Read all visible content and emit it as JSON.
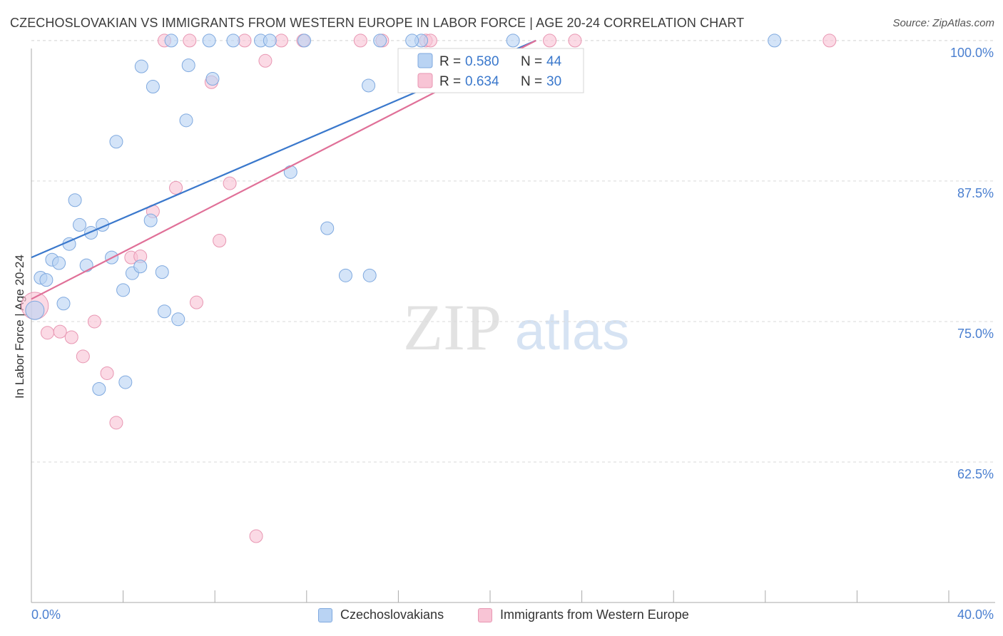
{
  "header": {
    "title": "CZECHOSLOVAKIAN VS IMMIGRANTS FROM WESTERN EUROPE IN LABOR FORCE | AGE 20-24 CORRELATION CHART",
    "source": "Source: ZipAtlas.com"
  },
  "watermark": {
    "zip": "ZIP",
    "atlas": "atlas"
  },
  "colors": {
    "blue_fill": "#b9d3f3",
    "blue_stroke": "#7fa9df",
    "blue_line": "#3a78cc",
    "pink_fill": "#f8c4d5",
    "pink_stroke": "#e896b2",
    "pink_line": "#e07098",
    "axis_label": "#4a7fd0",
    "grid": "#d9d9d9"
  },
  "legend_stats": [
    {
      "r_label": "R = ",
      "r_value": "0.580",
      "n_label": "N = ",
      "n_value": "44"
    },
    {
      "r_label": "R = ",
      "r_value": "0.634",
      "n_label": "N = ",
      "n_value": "30"
    }
  ],
  "chart_data": {
    "type": "scatter",
    "title": "CZECHOSLOVAKIAN VS IMMIGRANTS FROM WESTERN EUROPE IN LABOR FORCE | AGE 20-24 CORRELATION CHART",
    "xlabel": "",
    "ylabel": "In Labor Force | Age 20-24",
    "xlim": [
      0,
      40
    ],
    "ylim": [
      50,
      101.2
    ],
    "x_tick_labels": [
      "0.0%",
      "40.0%"
    ],
    "y_ticks": [
      62.5,
      75.0,
      87.5,
      100.0
    ],
    "y_tick_labels": [
      "62.5%",
      "75.0%",
      "87.5%",
      "100.0%"
    ],
    "grid": true,
    "legend_position": "bottom",
    "series": [
      {
        "name": "Czechoslovakians",
        "color": "#b9d3f3",
        "trend": {
          "x": [
            0,
            22
          ],
          "y": [
            80.7,
            100.0
          ]
        },
        "points": [
          {
            "x": 0.15,
            "y": 76.0,
            "s": 1
          },
          {
            "x": 0.4,
            "y": 78.9,
            "s": 0
          },
          {
            "x": 0.65,
            "y": 78.7,
            "s": 0
          },
          {
            "x": 0.9,
            "y": 80.5,
            "s": 0
          },
          {
            "x": 1.2,
            "y": 80.2,
            "s": 0
          },
          {
            "x": 1.4,
            "y": 76.6,
            "s": 0
          },
          {
            "x": 1.65,
            "y": 81.9,
            "s": 0
          },
          {
            "x": 1.9,
            "y": 85.8,
            "s": 0
          },
          {
            "x": 2.1,
            "y": 83.6,
            "s": 0
          },
          {
            "x": 2.4,
            "y": 80.0,
            "s": 0
          },
          {
            "x": 2.6,
            "y": 82.9,
            "s": 0
          },
          {
            "x": 2.95,
            "y": 69.0,
            "s": 0
          },
          {
            "x": 3.1,
            "y": 83.6,
            "s": 0
          },
          {
            "x": 3.5,
            "y": 80.7,
            "s": 0
          },
          {
            "x": 3.7,
            "y": 91.0,
            "s": 0
          },
          {
            "x": 4.0,
            "y": 77.8,
            "s": 0
          },
          {
            "x": 4.1,
            "y": 69.6,
            "s": 0
          },
          {
            "x": 4.4,
            "y": 79.3,
            "s": 0
          },
          {
            "x": 4.75,
            "y": 79.9,
            "s": 0
          },
          {
            "x": 4.8,
            "y": 97.7,
            "s": 0
          },
          {
            "x": 5.2,
            "y": 84.0,
            "s": 0
          },
          {
            "x": 5.3,
            "y": 95.9,
            "s": 0
          },
          {
            "x": 5.7,
            "y": 79.4,
            "s": 0
          },
          {
            "x": 5.8,
            "y": 75.9,
            "s": 0
          },
          {
            "x": 6.1,
            "y": 100.0,
            "s": 0
          },
          {
            "x": 6.4,
            "y": 75.2,
            "s": 0
          },
          {
            "x": 6.75,
            "y": 92.9,
            "s": 0
          },
          {
            "x": 6.85,
            "y": 97.8,
            "s": 0
          },
          {
            "x": 7.75,
            "y": 100.0,
            "s": 0
          },
          {
            "x": 7.9,
            "y": 96.6,
            "s": 0
          },
          {
            "x": 8.8,
            "y": 100.0,
            "s": 0
          },
          {
            "x": 10.0,
            "y": 100.0,
            "s": 0
          },
          {
            "x": 10.4,
            "y": 100.0,
            "s": 0
          },
          {
            "x": 11.3,
            "y": 88.3,
            "s": 0
          },
          {
            "x": 11.9,
            "y": 100.0,
            "s": 0
          },
          {
            "x": 12.9,
            "y": 83.3,
            "s": 0
          },
          {
            "x": 13.7,
            "y": 79.1,
            "s": 0
          },
          {
            "x": 14.7,
            "y": 96.0,
            "s": 0
          },
          {
            "x": 14.75,
            "y": 79.1,
            "s": 0
          },
          {
            "x": 15.2,
            "y": 100.0,
            "s": 0
          },
          {
            "x": 17.0,
            "y": 100.0,
            "s": 0
          },
          {
            "x": 32.4,
            "y": 100.0,
            "s": 0
          },
          {
            "x": 21.0,
            "y": 100.0,
            "s": 0
          },
          {
            "x": 16.6,
            "y": 100.0,
            "s": 0
          }
        ]
      },
      {
        "name": "Immigrants from Western Europe",
        "color": "#f8c4d5",
        "trend": {
          "x": [
            0,
            22
          ],
          "y": [
            77.0,
            100.0
          ]
        },
        "points": [
          {
            "x": 0.15,
            "y": 76.4,
            "s": 2
          },
          {
            "x": 0.7,
            "y": 74.0,
            "s": 0
          },
          {
            "x": 1.25,
            "y": 74.1,
            "s": 0
          },
          {
            "x": 1.75,
            "y": 73.6,
            "s": 0
          },
          {
            "x": 2.25,
            "y": 71.9,
            "s": 0
          },
          {
            "x": 2.75,
            "y": 75.0,
            "s": 0
          },
          {
            "x": 3.3,
            "y": 70.4,
            "s": 0
          },
          {
            "x": 3.7,
            "y": 66.0,
            "s": 0
          },
          {
            "x": 4.35,
            "y": 80.7,
            "s": 0
          },
          {
            "x": 4.75,
            "y": 80.8,
            "s": 0
          },
          {
            "x": 5.3,
            "y": 84.8,
            "s": 0
          },
          {
            "x": 5.8,
            "y": 100.0,
            "s": 0
          },
          {
            "x": 6.3,
            "y": 86.9,
            "s": 0
          },
          {
            "x": 6.9,
            "y": 100.0,
            "s": 0
          },
          {
            "x": 7.2,
            "y": 76.7,
            "s": 0
          },
          {
            "x": 7.85,
            "y": 96.3,
            "s": 0
          },
          {
            "x": 8.2,
            "y": 82.2,
            "s": 0
          },
          {
            "x": 8.65,
            "y": 87.3,
            "s": 0
          },
          {
            "x": 9.3,
            "y": 100.0,
            "s": 0
          },
          {
            "x": 10.2,
            "y": 98.2,
            "s": 0
          },
          {
            "x": 10.9,
            "y": 100.0,
            "s": 0
          },
          {
            "x": 11.85,
            "y": 100.0,
            "s": 0
          },
          {
            "x": 14.35,
            "y": 100.0,
            "s": 0
          },
          {
            "x": 15.3,
            "y": 100.0,
            "s": 0
          },
          {
            "x": 17.2,
            "y": 100.0,
            "s": 0
          },
          {
            "x": 17.4,
            "y": 100.0,
            "s": 0
          },
          {
            "x": 22.6,
            "y": 100.0,
            "s": 0
          },
          {
            "x": 23.7,
            "y": 100.0,
            "s": 0
          },
          {
            "x": 34.8,
            "y": 100.0,
            "s": 0
          },
          {
            "x": 9.8,
            "y": 55.9,
            "s": 0
          }
        ]
      }
    ]
  }
}
